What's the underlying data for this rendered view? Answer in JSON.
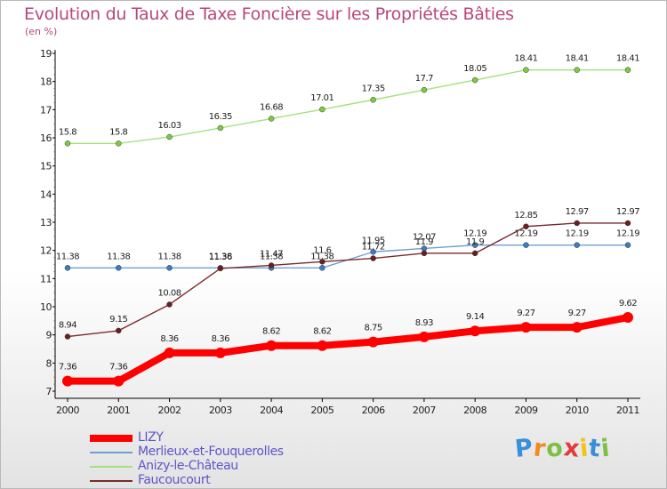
{
  "chart_data": {
    "type": "line",
    "title": "Evolution du Taux de Taxe Foncière sur les Propriétés Bâties",
    "unit_label": "(en %)",
    "categories": [
      "2000",
      "2001",
      "2002",
      "2003",
      "2004",
      "2005",
      "2006",
      "2007",
      "2008",
      "2009",
      "2010",
      "2011"
    ],
    "ylim": [
      7,
      19
    ],
    "yticks": [
      7,
      8,
      9,
      10,
      11,
      12,
      13,
      14,
      15,
      16,
      17,
      18,
      19
    ],
    "grid": false,
    "legend_position": "bottom-left",
    "series": [
      {
        "name": "LIZY",
        "color": "#ff0000",
        "point_color": "#ff0000",
        "values": [
          7.36,
          7.36,
          8.36,
          8.36,
          8.62,
          8.62,
          8.75,
          8.93,
          9.14,
          9.27,
          9.27,
          9.62
        ],
        "labels": [
          "7.36",
          "7.36",
          "8.36",
          "8.36",
          "8.62",
          "8.62",
          "8.75",
          "8.93",
          "9.14",
          "9.27",
          "9.27",
          "9.62"
        ]
      },
      {
        "name": "Merlieux-et-Fouquerolles",
        "color": "#6f9fd0",
        "point_color": "#3e7bc0",
        "values": [
          11.38,
          11.38,
          11.38,
          11.38,
          11.38,
          11.38,
          11.95,
          12.07,
          12.19,
          12.19,
          12.19,
          12.19
        ],
        "labels": [
          "11.38",
          "11.38",
          "11.38",
          "11.38",
          "11.38",
          "11.38",
          "11.95",
          "12.07",
          "12.19",
          "12.19",
          "12.19",
          "12.19"
        ]
      },
      {
        "name": "Anizy-le-Château",
        "color": "#a6e07e",
        "point_color": "#7ccc3f",
        "values": [
          15.8,
          15.8,
          16.03,
          16.35,
          16.68,
          17.01,
          17.35,
          17.7,
          18.05,
          18.41,
          18.41,
          18.41
        ],
        "labels": [
          "15.8",
          "15.8",
          "16.03",
          "16.35",
          "16.68",
          "17.01",
          "17.35",
          "17.7",
          "18.05",
          "18.41",
          "18.41",
          "18.41"
        ]
      },
      {
        "name": "Faucoucourt",
        "color": "#7a2a2e",
        "point_color": "#6a1e22",
        "values": [
          8.94,
          9.15,
          10.08,
          11.36,
          11.47,
          11.6,
          11.72,
          11.9,
          11.9,
          12.85,
          12.97,
          12.97
        ],
        "labels": [
          "8.94",
          "9.15",
          "10.08",
          "11.36",
          "11.47",
          "11.6",
          "11.72",
          "11.9",
          "11.9",
          "12.85",
          "12.97",
          "12.97"
        ]
      }
    ]
  },
  "brand": {
    "text": "Proxiti",
    "letter_colors": [
      "#3a8fd8",
      "#f28b1e",
      "#7bc043",
      "#e23b3b",
      "#f2c419",
      "#3a8fd8",
      "#7bc043"
    ]
  }
}
